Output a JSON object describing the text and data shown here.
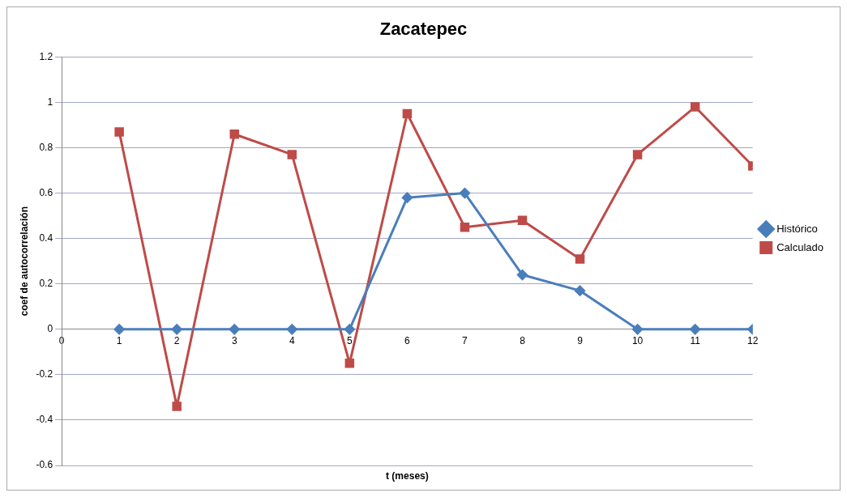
{
  "chart_data": {
    "type": "line",
    "title": "Zacatepec",
    "xlabel": "t (meses)",
    "ylabel": "coef de autocorrelación",
    "x": [
      1,
      2,
      3,
      4,
      5,
      6,
      7,
      8,
      9,
      10,
      11,
      12
    ],
    "series": [
      {
        "name": "Histórico",
        "color": "#4a7ebb",
        "marker": "diamond",
        "values": [
          0,
          0,
          0,
          0,
          0,
          0.58,
          0.6,
          0.24,
          0.17,
          0,
          0,
          0
        ]
      },
      {
        "name": "Calculado",
        "color": "#be4b48",
        "marker": "square",
        "values": [
          0.87,
          -0.34,
          0.86,
          0.77,
          -0.15,
          0.95,
          0.45,
          0.48,
          0.31,
          0.77,
          0.98,
          0.72
        ]
      }
    ],
    "xlim": [
      0,
      12
    ],
    "xticks": [
      0,
      1,
      2,
      3,
      4,
      5,
      6,
      7,
      8,
      9,
      10,
      11,
      12
    ],
    "ylim": [
      -0.6,
      1.2
    ],
    "yticks": [
      -0.6,
      -0.4,
      -0.2,
      0,
      0.2,
      0.4,
      0.6,
      0.8,
      1,
      1.2
    ],
    "grid": "y",
    "legend": "right"
  }
}
